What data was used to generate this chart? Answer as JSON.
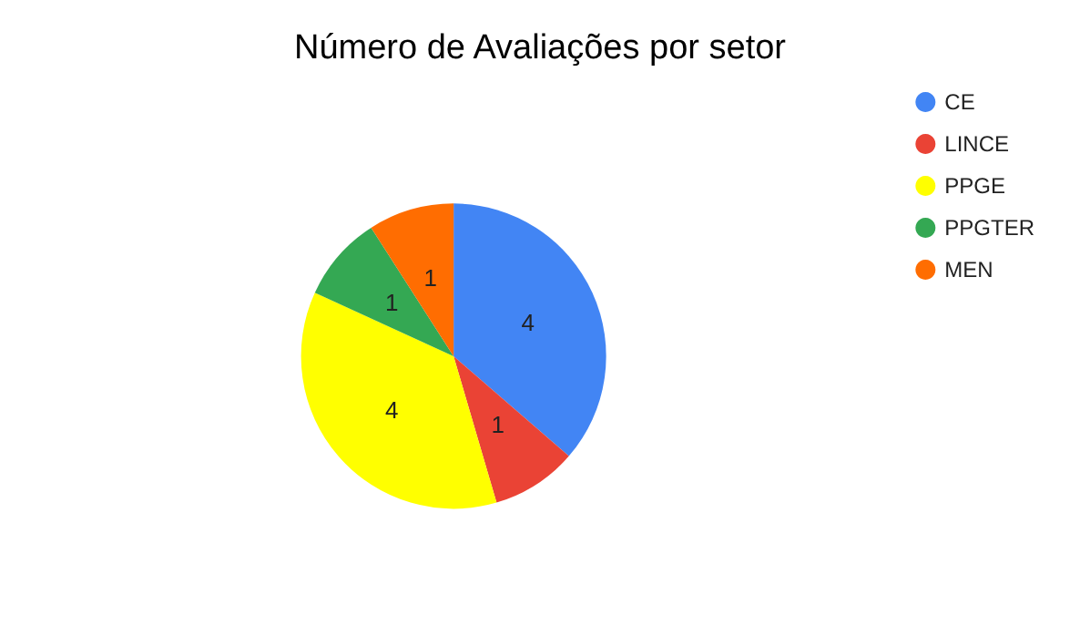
{
  "chart_data": {
    "type": "pie",
    "title": "Número de Avaliações por setor",
    "categories": [
      "CE",
      "LINCE",
      "PPGE",
      "PPGTER",
      "MEN"
    ],
    "values": [
      4,
      1,
      4,
      1,
      1
    ],
    "colors": [
      "#4285f4",
      "#ea4335",
      "#ffff00",
      "#34a853",
      "#ff6d01"
    ],
    "data_labels": true,
    "legend": "top right"
  }
}
